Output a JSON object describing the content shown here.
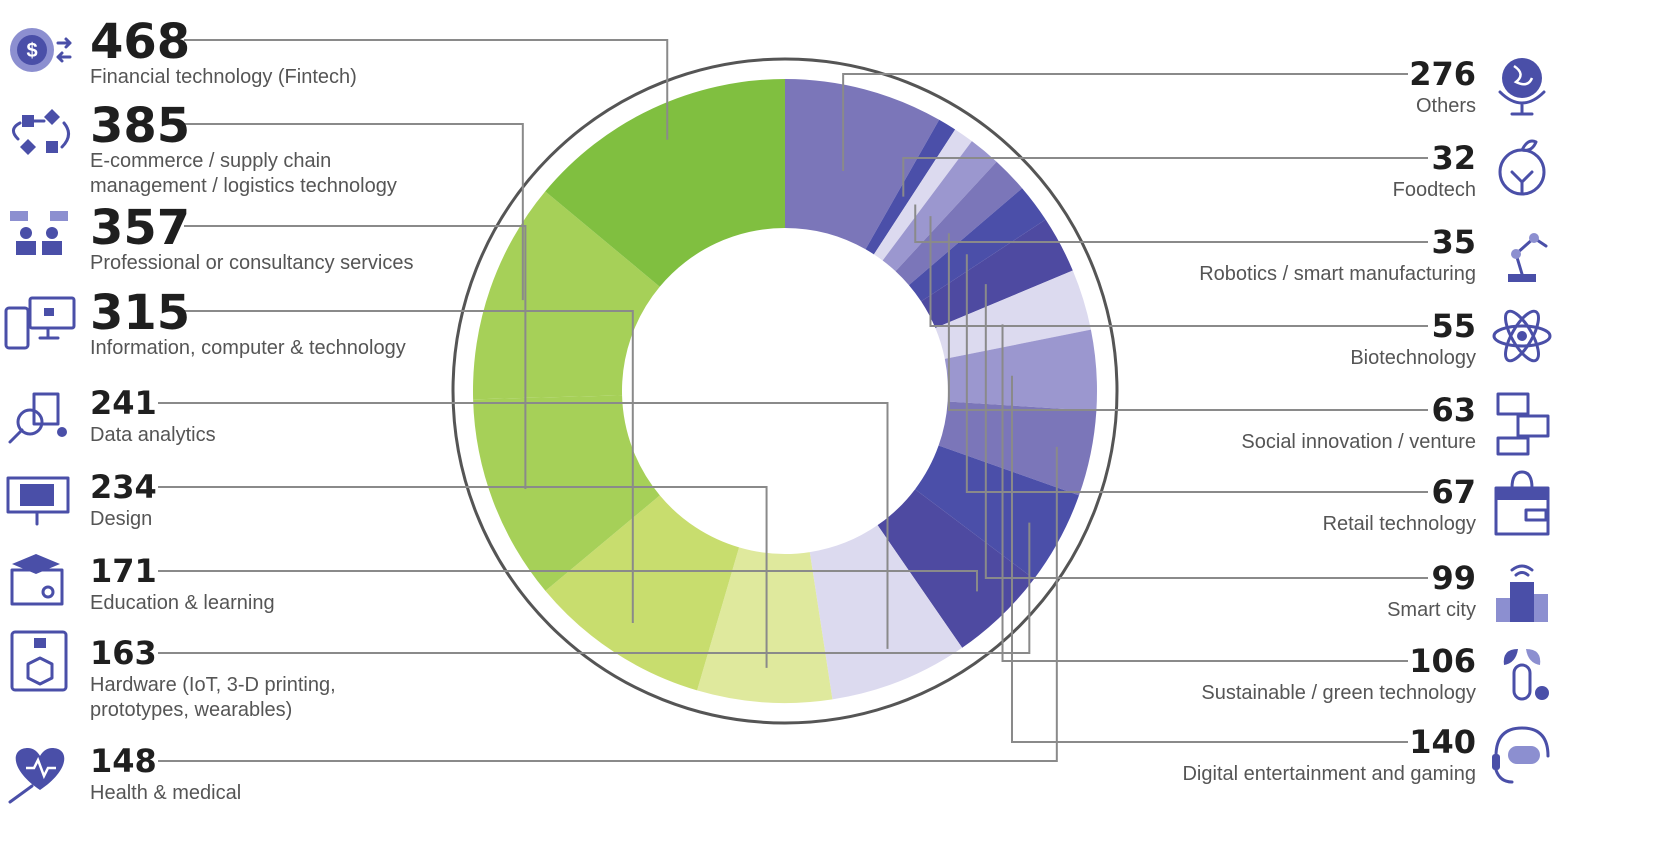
{
  "chart_data": {
    "type": "pie",
    "donut": true,
    "slices": [
      {
        "label": "Others",
        "value": 276,
        "color": "#7b76b9",
        "side": "right",
        "icon": "globe-icon"
      },
      {
        "label": "Foodtech",
        "value": 32,
        "color": "#4b4fa9",
        "side": "right",
        "icon": "apple-circuit-icon"
      },
      {
        "label": "Robotics / smart manufacturing",
        "value": 35,
        "color": "#dcdaef",
        "side": "right",
        "icon": "robot-arm-icon"
      },
      {
        "label": "Biotechnology",
        "value": 55,
        "color": "#9b97cf",
        "side": "right",
        "icon": "atom-icon"
      },
      {
        "label": "Social innovation / venture",
        "value": 63,
        "color": "#7b76b9",
        "side": "right",
        "icon": "chat-bubbles-icon"
      },
      {
        "label": "Retail technology",
        "value": 67,
        "color": "#4b4fa9",
        "side": "right",
        "icon": "shopping-bag-icon"
      },
      {
        "label": "Smart city",
        "value": 99,
        "color": "#4e4aa1",
        "side": "right",
        "icon": "smart-building-icon"
      },
      {
        "label": "Sustainable / green technology",
        "value": 106,
        "color": "#dcdaef",
        "side": "right",
        "icon": "green-tech-icon"
      },
      {
        "label": "Digital entertainment and gaming",
        "value": 140,
        "color": "#9b97cf",
        "side": "right",
        "icon": "gamepad-headset-icon"
      },
      {
        "label": "Health & medical",
        "value": 148,
        "color": "#7b76b9",
        "side": "left",
        "icon": "heart-syringe-icon"
      },
      {
        "label": "Hardware (IoT, 3-D printing, prototypes, wearables)",
        "value": 163,
        "color": "#4b4fa9",
        "side": "left",
        "icon": "3d-printer-icon"
      },
      {
        "label": "Education & learning",
        "value": 171,
        "color": "#4e4aa1",
        "side": "left",
        "icon": "graduation-certificate-icon"
      },
      {
        "label": "Data analytics",
        "value": 241,
        "color": "#dcdaef",
        "side": "left",
        "icon": "magnifier-analytics-icon"
      },
      {
        "label": "Design",
        "value": 234,
        "color": "#dfe99d",
        "side": "left",
        "icon": "design-board-icon"
      },
      {
        "label": "Education & learning",
        "value": 0,
        "color": "#dfe99d",
        "side": "none",
        "icon": ""
      },
      {
        "label": "Information, computer & technology",
        "value": 315,
        "color": "#c8dd6e",
        "side": "left",
        "icon": "devices-icon"
      },
      {
        "label": "Professional or consultancy services",
        "value": 357,
        "color": "#a6d058",
        "side": "left",
        "icon": "consultants-icon"
      },
      {
        "label": "E-commerce / supply chain management / logistics technology",
        "value": 385,
        "color": "#a6d058",
        "side": "left",
        "icon": "supply-chain-icon"
      },
      {
        "label": "Financial technology (Fintech)",
        "value": 468,
        "color": "#80bf40",
        "side": "left",
        "icon": "dollar-exchange-icon"
      }
    ]
  },
  "left_labels": [
    {
      "value": "468",
      "lines": [
        "Financial technology (Fintech)"
      ],
      "icon": "dollar-exchange-icon"
    },
    {
      "value": "385",
      "lines": [
        "E-commerce / supply chain",
        "management / logistics technology"
      ],
      "icon": "supply-chain-icon"
    },
    {
      "value": "357",
      "lines": [
        "Professional or consultancy services"
      ],
      "icon": "consultants-icon"
    },
    {
      "value": "315",
      "lines": [
        "Information, computer & technology"
      ],
      "icon": "devices-icon"
    },
    {
      "value": "241",
      "lines": [
        "Data analytics"
      ],
      "icon": "magnifier-analytics-icon"
    },
    {
      "value": "234",
      "lines": [
        "Design"
      ],
      "icon": "design-board-icon"
    },
    {
      "value": "171",
      "lines": [
        "Education & learning"
      ],
      "icon": "graduation-certificate-icon"
    },
    {
      "value": "163",
      "lines": [
        "Hardware (IoT, 3-D printing,",
        "prototypes, wearables)"
      ],
      "icon": "3d-printer-icon"
    },
    {
      "value": "148",
      "lines": [
        "Health & medical"
      ],
      "icon": "heart-syringe-icon"
    }
  ],
  "right_labels": [
    {
      "value": "276",
      "lines": [
        "Others"
      ],
      "icon": "globe-icon"
    },
    {
      "value": "32",
      "lines": [
        "Foodtech"
      ],
      "icon": "apple-circuit-icon"
    },
    {
      "value": "35",
      "lines": [
        "Robotics / smart manufacturing"
      ],
      "icon": "robot-arm-icon"
    },
    {
      "value": "55",
      "lines": [
        "Biotechnology"
      ],
      "icon": "atom-icon"
    },
    {
      "value": "63",
      "lines": [
        "Social innovation / venture"
      ],
      "icon": "chat-bubbles-icon"
    },
    {
      "value": "67",
      "lines": [
        "Retail technology"
      ],
      "icon": "shopping-bag-icon"
    },
    {
      "value": "99",
      "lines": [
        "Smart city"
      ],
      "icon": "smart-building-icon"
    },
    {
      "value": "106",
      "lines": [
        "Sustainable / green technology"
      ],
      "icon": "green-tech-icon"
    },
    {
      "value": "140",
      "lines": [
        "Digital entertainment and gaming"
      ],
      "icon": "gamepad-headset-icon"
    }
  ],
  "colors": {
    "leader": "#8a8a8a",
    "ring": "#555555",
    "icon": "#4a4fa8"
  }
}
